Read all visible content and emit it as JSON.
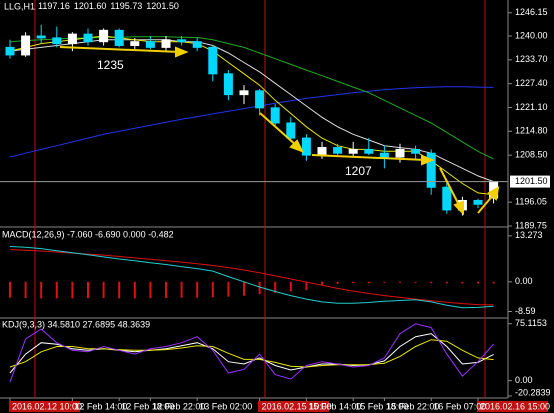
{
  "chart_data": [
    {
      "type": "candlestick",
      "title": "LLG,H1",
      "header_values": [
        "1197.16",
        "1201.60",
        "1195.73",
        "1201.50"
      ],
      "categories": [
        "2016.02.12 10:00",
        null,
        null,
        null,
        "12 Feb 14:00",
        null,
        null,
        "12 Feb 18:00",
        null,
        "12 Feb 22:00",
        null,
        null,
        "13 Feb 02:00",
        null,
        null,
        null,
        "2016.02.15 10:00",
        null,
        null,
        "15 Feb 14:00",
        null,
        null,
        "15 Feb 18:00",
        null,
        "15 Feb 22:00",
        null,
        null,
        "16 Feb 07:00",
        null,
        null,
        "2016.02.16 15:00",
        null
      ],
      "open": [
        1237,
        1235,
        1240,
        1239.5,
        1238,
        1240.5,
        1238.5,
        1241.5,
        1237.5,
        1238.5,
        1237,
        1239,
        1238.5,
        1237,
        1230,
        1224.5,
        1225.5,
        1221,
        1217,
        1213,
        1208.5,
        1210.5,
        1209,
        1210,
        1209,
        1208,
        1210,
        1209,
        1200,
        1194,
        1196.5,
        1197.16
      ],
      "high": [
        1239,
        1241,
        1243,
        1242.5,
        1241,
        1242,
        1242,
        1242,
        1239.5,
        1240,
        1240,
        1240,
        1239.5,
        1237.5,
        1231,
        1227,
        1226,
        1222,
        1218.5,
        1214,
        1212,
        1211.5,
        1212,
        1213,
        1211,
        1211.5,
        1211,
        1210,
        1201.5,
        1197.5,
        1197,
        1201.6
      ],
      "low": [
        1234,
        1234.5,
        1238,
        1237,
        1236,
        1237.5,
        1237.5,
        1237,
        1236.5,
        1236.5,
        1236,
        1237.5,
        1236,
        1228,
        1223,
        1222,
        1219,
        1216,
        1212,
        1207,
        1207.5,
        1208,
        1208,
        1208.5,
        1205,
        1206.5,
        1207.5,
        1198,
        1193,
        1192.5,
        1194.5,
        1195.73
      ],
      "close": [
        1235,
        1240,
        1239.5,
        1238,
        1240.5,
        1238.5,
        1241.5,
        1237.5,
        1238.5,
        1237,
        1239,
        1238.5,
        1237,
        1230,
        1224.5,
        1225.5,
        1221,
        1217,
        1213,
        1208.5,
        1210.5,
        1209,
        1210,
        1209,
        1208,
        1210,
        1209,
        1200,
        1194,
        1196.5,
        1195.5,
        1201.5
      ],
      "up_color": "#ffffff",
      "down_color": "#00d8ff",
      "lines": [
        {
          "color": "#2233ee",
          "values": [
            1208,
            1209,
            1210,
            1211,
            1212,
            1213,
            1214,
            1214.8,
            1215.6,
            1216.4,
            1217.2,
            1218,
            1218.7,
            1219.4,
            1220.1,
            1220.8,
            1221.5,
            1222.2,
            1222.9,
            1223.5,
            1224,
            1224.5,
            1225,
            1225.4,
            1225.8,
            1226.1,
            1226.3,
            1226.5,
            1226.6,
            1226.6,
            1226.5,
            1226.4
          ]
        },
        {
          "color": "#22aa22",
          "values": [
            1238.5,
            1238.8,
            1239,
            1239.2,
            1239.4,
            1239.5,
            1239.6,
            1239.7,
            1239.8,
            1239.8,
            1239.8,
            1239.7,
            1239.6,
            1239,
            1238,
            1237,
            1235.5,
            1234,
            1232.5,
            1231,
            1229.5,
            1228,
            1226.5,
            1225,
            1223,
            1221,
            1219,
            1217,
            1214.5,
            1212,
            1209.5,
            1207.5
          ]
        },
        {
          "color": "#dddddd",
          "values": [
            1236,
            1236.5,
            1237,
            1237.5,
            1238,
            1238.5,
            1239,
            1239,
            1239,
            1239,
            1239,
            1238.5,
            1238.5,
            1237.5,
            1235.5,
            1233,
            1230.5,
            1227.5,
            1224.5,
            1221.5,
            1218.5,
            1216,
            1214,
            1212.5,
            1211,
            1210.5,
            1210,
            1209,
            1207,
            1205,
            1203,
            1201.5
          ]
        },
        {
          "color": "#e8e800",
          "values": [
            1236,
            1237,
            1238,
            1238.5,
            1239,
            1239.5,
            1240,
            1239.5,
            1239,
            1238.5,
            1238.5,
            1238.5,
            1238,
            1236,
            1233,
            1230,
            1227,
            1223,
            1219.5,
            1216,
            1213,
            1211,
            1210,
            1210,
            1209.5,
            1209.5,
            1209.5,
            1207,
            1204,
            1201,
            1198.5,
            1198
          ]
        }
      ],
      "current_price": {
        "value": 1201.5,
        "label": "1201.50"
      },
      "annotations": [
        "1235",
        "1207"
      ],
      "ylim": [
        1189.75,
        1249
      ],
      "yticks": [
        1246.15,
        {
          "value": 1240,
          "label": "1240.00"
        },
        {
          "value": 1233.7,
          "label": "1233.70"
        },
        {
          "value": 1227.4,
          "label": "1227.40"
        },
        {
          "value": 1221.1,
          "label": "1221.10"
        },
        {
          "value": 1214.8,
          "label": "1214.80"
        },
        {
          "value": 1208.5,
          "label": "1208.50"
        },
        1196.05,
        1189.75
      ]
    },
    {
      "type": "macd",
      "title": "MACD(12,26,9) -7.060 -6.690 0.000 -0.482",
      "histogram_color": "#dd1111",
      "histogram": [
        -4.6,
        -4.7,
        -4.8,
        -4.8,
        -4.8,
        -4.7,
        -4.7,
        -4.8,
        -4.8,
        -4.7,
        -4.7,
        -4.6,
        -4.6,
        -4.5,
        -4.3,
        -4.0,
        -3.6,
        -3.2,
        -2.8,
        -2.4,
        -1.0,
        -0.6,
        -0.4,
        -0.4,
        -0.3,
        -0.3,
        -0.3,
        -0.4,
        -0.5,
        -0.5,
        -0.5,
        -0.5
      ],
      "lines": [
        {
          "color": "#dd1111",
          "values": [
            9.3,
            9.1,
            8.9,
            8.6,
            8.3,
            8.0,
            7.7,
            7.3,
            6.9,
            6.5,
            6.1,
            5.7,
            5.2,
            4.7,
            4.1,
            3.4,
            2.6,
            1.7,
            0.8,
            -0.1,
            -1.0,
            -1.9,
            -2.7,
            -3.4,
            -4.0,
            -4.5,
            -5.0,
            -5.5,
            -5.9,
            -6.3,
            -6.6,
            -6.69
          ]
        },
        {
          "color": "#22cccc",
          "values": [
            10.2,
            10,
            9.6,
            9,
            8.4,
            7.8,
            7.2,
            6.6,
            6.1,
            5.5,
            5,
            4.4,
            3.8,
            3.1,
            1.5,
            0,
            -1.5,
            -2.8,
            -4,
            -5,
            -5.8,
            -6.2,
            -6.2,
            -6,
            -5.6,
            -5.4,
            -5.2,
            -5.8,
            -6.8,
            -7.5,
            -7.4,
            -7.06
          ]
        }
      ],
      "ylim": [
        -9.89,
        14.97
      ],
      "yticks": [
        13.273,
        {
          "value": 0,
          "label": "0.00"
        },
        -8.59
      ]
    },
    {
      "type": "line",
      "title": "KDJ(9,3,3) 34.5810 27.6895 48.3639",
      "lines": [
        {
          "color": "#ffffff",
          "values": [
            10,
            35,
            50,
            48,
            42,
            40,
            42,
            40,
            38,
            40,
            42,
            46,
            50,
            42,
            25,
            22,
            30,
            20,
            14,
            18,
            22,
            22,
            20,
            21,
            26,
            45,
            58,
            62,
            45,
            22,
            24,
            34.581
          ]
        },
        {
          "color": "#e8e800",
          "values": [
            18,
            25,
            38,
            45,
            45,
            42,
            42,
            41,
            40,
            40,
            41,
            43,
            46,
            45,
            36,
            28,
            28,
            24,
            19,
            18,
            20,
            21,
            21,
            21,
            23,
            32,
            45,
            54,
            52,
            40,
            30,
            27.6895
          ]
        },
        {
          "color": "#9933ff",
          "values": [
            -2,
            55,
            68,
            50,
            40,
            38,
            45,
            40,
            35,
            42,
            45,
            50,
            58,
            40,
            10,
            15,
            35,
            8,
            2,
            20,
            25,
            22,
            18,
            20,
            30,
            62,
            75,
            70,
            35,
            6,
            25,
            48.3639
          ]
        }
      ],
      "ylim": [
        -20.2839,
        80
      ],
      "yticks": [
        75.1153,
        {
          "value": 0,
          "label": "0.00"
        },
        -20.2839
      ]
    }
  ]
}
